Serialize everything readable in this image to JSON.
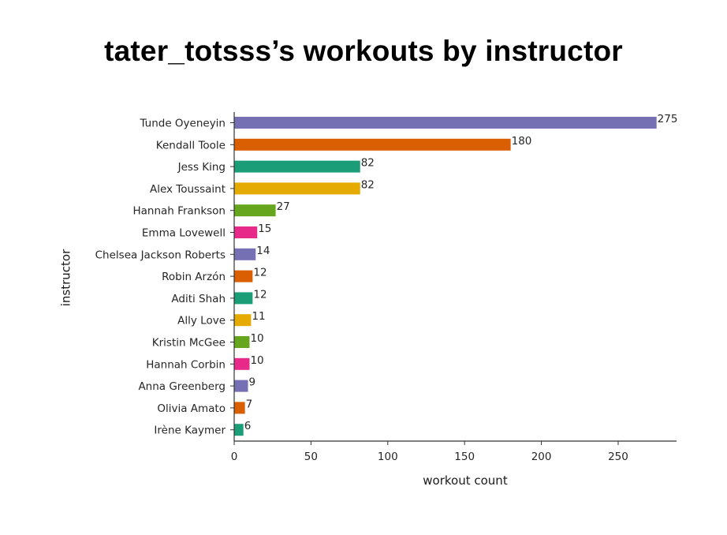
{
  "chart_data": {
    "type": "bar",
    "orientation": "horizontal",
    "title": "tater_totsss’s workouts by instructor",
    "xlabel": "workout count",
    "ylabel": "instructor",
    "xlim": [
      0,
      288
    ],
    "xticks": [
      0,
      50,
      100,
      150,
      200,
      250
    ],
    "grid": false,
    "categories": [
      "Tunde Oyeneyin",
      "Kendall Toole",
      "Jess King",
      "Alex Toussaint",
      "Hannah Frankson",
      "Emma Lovewell",
      "Chelsea Jackson Roberts",
      "Robin Arzón",
      "Aditi Shah",
      "Ally Love",
      "Kristin McGee",
      "Hannah Corbin",
      "Anna Greenberg",
      "Olivia Amato",
      "Irène Kaymer"
    ],
    "values": [
      275,
      180,
      82,
      82,
      27,
      15,
      14,
      12,
      12,
      11,
      10,
      10,
      9,
      7,
      6
    ],
    "colors": [
      "#7570b3",
      "#d95f02",
      "#1b9e77",
      "#e6ab02",
      "#66a61e",
      "#e7298a",
      "#7570b3",
      "#d95f02",
      "#1b9e77",
      "#e6ab02",
      "#66a61e",
      "#e7298a",
      "#7570b3",
      "#d95f02",
      "#1b9e77"
    ]
  }
}
